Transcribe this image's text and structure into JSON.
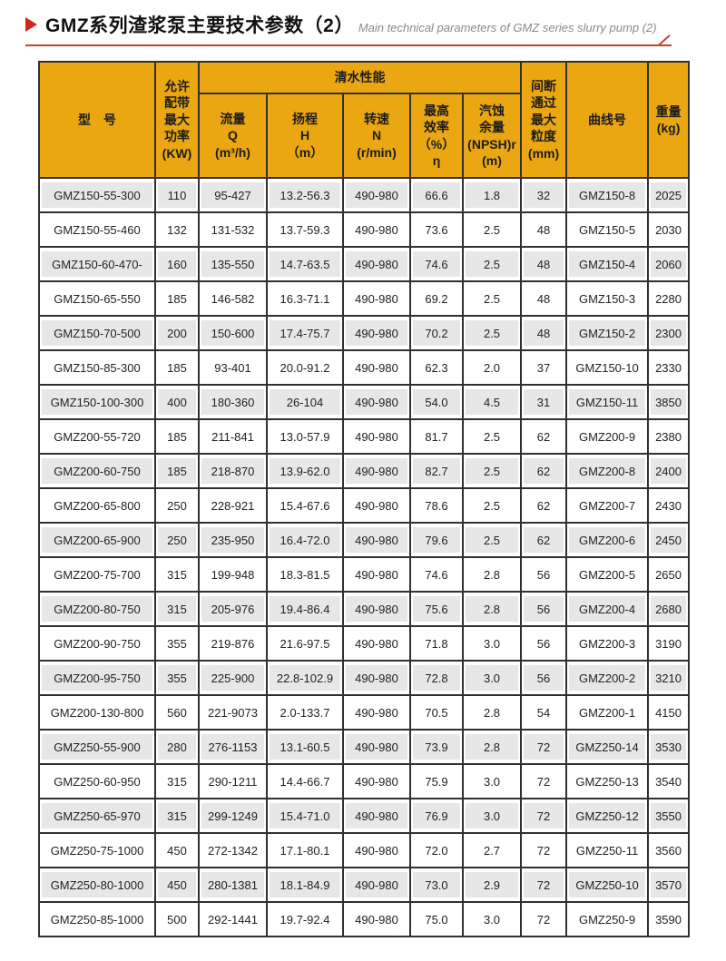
{
  "page": {
    "title_cn": "GMZ系列渣浆泵主要技术参数（2）",
    "title_en": "Main technical parameters of GMZ series slurry pump (2)"
  },
  "colors": {
    "header_bg": "#EAA712",
    "alt_row_bg": "#E7E7E7",
    "grid_border": "#303030",
    "accent_red": "#D2251B",
    "underline_red": "#C2472A"
  },
  "table": {
    "header": {
      "model": "型　号",
      "power": [
        "允许",
        "配带",
        "最大",
        "功率",
        "(KW)"
      ],
      "clear_water": "清水性能",
      "flow": [
        "流量",
        "Q",
        "(m³/h)"
      ],
      "head": [
        "扬程",
        "H",
        "（m）"
      ],
      "speed": [
        "转速",
        "N",
        "(r/min)"
      ],
      "efficiency": [
        "最高",
        "效率",
        "（%）",
        "η"
      ],
      "npsh": [
        "汽蚀",
        "余量",
        "(NPSH)r",
        "(m)"
      ],
      "particle": [
        "间断",
        "通过",
        "最大",
        "粒度",
        "(mm)"
      ],
      "curve": "曲线号",
      "weight": [
        "重量",
        "(kg)"
      ]
    },
    "rows": [
      [
        "GMZ150-55-300",
        "110",
        "95-427",
        "13.2-56.3",
        "490-980",
        "66.6",
        "1.8",
        "32",
        "GMZ150-8",
        "2025"
      ],
      [
        "GMZ150-55-460",
        "132",
        "131-532",
        "13.7-59.3",
        "490-980",
        "73.6",
        "2.5",
        "48",
        "GMZ150-5",
        "2030"
      ],
      [
        "GMZ150-60-470-",
        "160",
        "135-550",
        "14.7-63.5",
        "490-980",
        "74.6",
        "2.5",
        "48",
        "GMZ150-4",
        "2060"
      ],
      [
        "GMZ150-65-550",
        "185",
        "146-582",
        "16.3-71.1",
        "490-980",
        "69.2",
        "2.5",
        "48",
        "GMZ150-3",
        "2280"
      ],
      [
        "GMZ150-70-500",
        "200",
        "150-600",
        "17.4-75.7",
        "490-980",
        "70.2",
        "2.5",
        "48",
        "GMZ150-2",
        "2300"
      ],
      [
        "GMZ150-85-300",
        "185",
        "93-401",
        "20.0-91.2",
        "490-980",
        "62.3",
        "2.0",
        "37",
        "GMZ150-10",
        "2330"
      ],
      [
        "GMZ150-100-300",
        "400",
        "180-360",
        "26-104",
        "490-980",
        "54.0",
        "4.5",
        "31",
        "GMZ150-11",
        "3850"
      ],
      [
        "GMZ200-55-720",
        "185",
        "211-841",
        "13.0-57.9",
        "490-980",
        "81.7",
        "2.5",
        "62",
        "GMZ200-9",
        "2380"
      ],
      [
        "GMZ200-60-750",
        "185",
        "218-870",
        "13.9-62.0",
        "490-980",
        "82.7",
        "2.5",
        "62",
        "GMZ200-8",
        "2400"
      ],
      [
        "GMZ200-65-800",
        "250",
        "228-921",
        "15.4-67.6",
        "490-980",
        "78.6",
        "2.5",
        "62",
        "GMZ200-7",
        "2430"
      ],
      [
        "GMZ200-65-900",
        "250",
        "235-950",
        "16.4-72.0",
        "490-980",
        "79.6",
        "2.5",
        "62",
        "GMZ200-6",
        "2450"
      ],
      [
        "GMZ200-75-700",
        "315",
        "199-948",
        "18.3-81.5",
        "490-980",
        "74.6",
        "2.8",
        "56",
        "GMZ200-5",
        "2650"
      ],
      [
        "GMZ200-80-750",
        "315",
        "205-976",
        "19.4-86.4",
        "490-980",
        "75.6",
        "2.8",
        "56",
        "GMZ200-4",
        "2680"
      ],
      [
        "GMZ200-90-750",
        "355",
        "219-876",
        "21.6-97.5",
        "490-980",
        "71.8",
        "3.0",
        "56",
        "GMZ200-3",
        "3190"
      ],
      [
        "GMZ200-95-750",
        "355",
        "225-900",
        "22.8-102.9",
        "490-980",
        "72.8",
        "3.0",
        "56",
        "GMZ200-2",
        "3210"
      ],
      [
        "GMZ200-130-800",
        "560",
        "221-9073",
        "2.0-133.7",
        "490-980",
        "70.5",
        "2.8",
        "54",
        "GMZ200-1",
        "4150"
      ],
      [
        "GMZ250-55-900",
        "280",
        "276-1153",
        "13.1-60.5",
        "490-980",
        "73.9",
        "2.8",
        "72",
        "GMZ250-14",
        "3530"
      ],
      [
        "GMZ250-60-950",
        "315",
        "290-1211",
        "14.4-66.7",
        "490-980",
        "75.9",
        "3.0",
        "72",
        "GMZ250-13",
        "3540"
      ],
      [
        "GMZ250-65-970",
        "315",
        "299-1249",
        "15.4-71.0",
        "490-980",
        "76.9",
        "3.0",
        "72",
        "GMZ250-12",
        "3550"
      ],
      [
        "GMZ250-75-1000",
        "450",
        "272-1342",
        "17.1-80.1",
        "490-980",
        "72.0",
        "2.7",
        "72",
        "GMZ250-11",
        "3560"
      ],
      [
        "GMZ250-80-1000",
        "450",
        "280-1381",
        "18.1-84.9",
        "490-980",
        "73.0",
        "2.9",
        "72",
        "GMZ250-10",
        "3570"
      ],
      [
        "GMZ250-85-1000",
        "500",
        "292-1441",
        "19.7-92.4",
        "490-980",
        "75.0",
        "3.0",
        "72",
        "GMZ250-9",
        "3590"
      ]
    ]
  }
}
